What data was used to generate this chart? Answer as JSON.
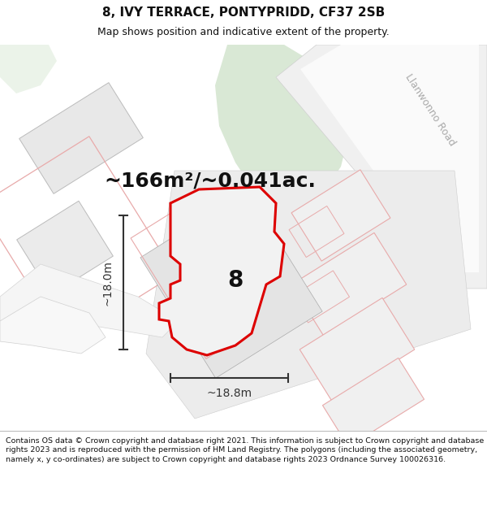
{
  "title": "8, IVY TERRACE, PONTYPRIDD, CF37 2SB",
  "subtitle": "Map shows position and indicative extent of the property.",
  "area_text": "~166m²/~0.041ac.",
  "label_8": "8",
  "dim_width": "~18.8m",
  "dim_height": "~18.0m",
  "road_label": "Llanwonno Road",
  "footer_text": "Contains OS data © Crown copyright and database right 2021. This information is subject to Crown copyright and database rights 2023 and is reproduced with the permission of HM Land Registry. The polygons (including the associated geometry, namely x, y co-ordinates) are subject to Crown copyright and database rights 2023 Ordnance Survey 100026316.",
  "bg_color": "#ffffff",
  "map_bg": "#ffffff",
  "green_fill": "#d9e8d5",
  "red_line": "#dd0000",
  "pink_line": "#e8aaaa",
  "grey_plot": "#e8e8e8",
  "grey_line": "#cccccc",
  "dim_color": "#333333",
  "text_color": "#111111",
  "road_label_color": "#aaaaaa",
  "title_fontsize": 11,
  "subtitle_fontsize": 9,
  "area_fontsize": 18,
  "label8_fontsize": 20,
  "dim_fontsize": 10,
  "road_fontsize": 9,
  "footer_fontsize": 6.8
}
